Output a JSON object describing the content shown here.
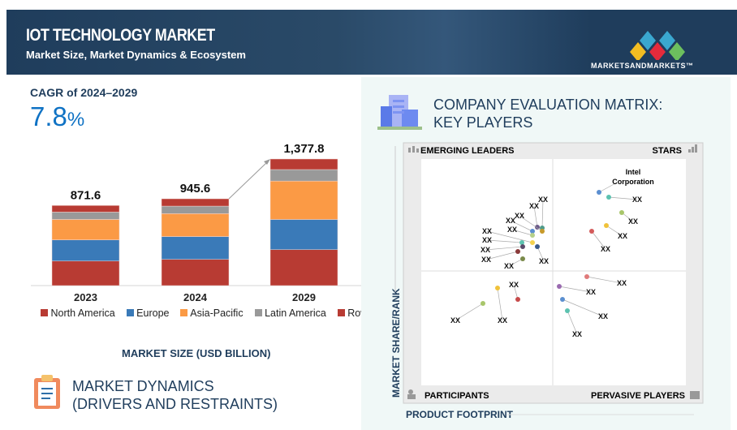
{
  "header": {
    "title": "IOT TECHNOLOGY MARKET",
    "subtitle": "Market Size, Market Dynamics & Ecosystem",
    "logo": "MARKETSANDMARKETS™"
  },
  "cagr": {
    "label": "CAGR of 2024–2029",
    "value": "7.8",
    "unit": "%"
  },
  "chart_data": {
    "type": "bar",
    "stacked": true,
    "categories": [
      "2023",
      "2024",
      "2029"
    ],
    "totals": [
      "871.6",
      "945.6",
      "1,377.8"
    ],
    "series": [
      {
        "name": "North America",
        "color": "#b83b33",
        "values": [
          267,
          285,
          391
        ]
      },
      {
        "name": "Europe",
        "color": "#3a7ab8",
        "values": [
          231,
          249,
          329
        ]
      },
      {
        "name": "Asia-Pacific",
        "color": "#fb9a45",
        "values": [
          222,
          249,
          418
        ]
      },
      {
        "name": "Latin America",
        "color": "#999999",
        "values": [
          80,
          82,
          125
        ]
      },
      {
        "name": "Row",
        "color": "#b83b33",
        "values": [
          72,
          80,
          115
        ]
      }
    ],
    "xlabel": "MARKET SIZE (USD BILLION)",
    "ylim": [
      0,
      1400
    ]
  },
  "dynamics": {
    "line1": "MARKET DYNAMICS",
    "line2": "(DRIVERS AND RESTRAINTS)"
  },
  "matrix": {
    "title1": "COMPANY EVALUATION MATRIX:",
    "title2": "KEY PLAYERS",
    "q_tl": "EMERGING LEADERS",
    "q_tr": "STARS",
    "q_bl": "PARTICIPANTS",
    "q_br": "PERVASIVE PLAYERS",
    "yaxis": "MARKET SHARE/RANK",
    "xaxis": "PRODUCT FOOTPRINT",
    "intel1": "Intel",
    "intel2": "Corporation",
    "xx": "XX"
  }
}
